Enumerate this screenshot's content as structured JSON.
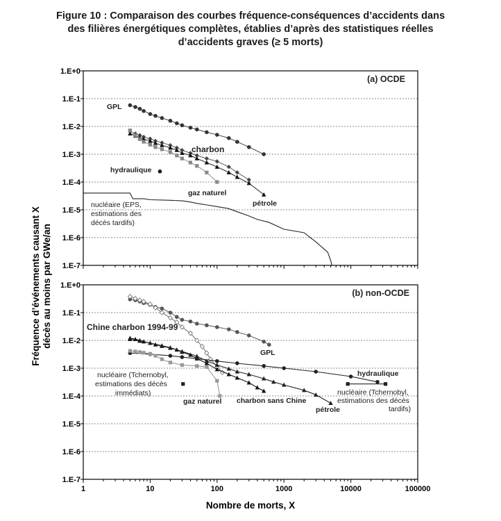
{
  "figure": {
    "title_lines": [
      "Figure 10 : Comparaison des courbes fréquence-conséquences d’accidents dans",
      "des filières énergétiques complètes, établies d’après des statistiques réelles",
      "d’accidents graves (≥ 5 morts)"
    ],
    "ylabel_lines": [
      "Fréquence d’événements causant X",
      "décès au moins par GWe/an"
    ],
    "xlabel": "Nombre de morts, X"
  },
  "chart_data": [
    {
      "type": "line",
      "title": "(a) OCDE",
      "xscale": "log",
      "yscale": "log",
      "xlim": [
        1,
        100000
      ],
      "ylim": [
        1e-07,
        1
      ],
      "x_ticks": [],
      "y_ticks": [
        "1.E-7",
        "1.E-6",
        "1.E-5",
        "1.E-4",
        "1.E-3",
        "1.E-2",
        "1.E-1",
        "1.E+0"
      ],
      "grid": "horizontal-dotted",
      "series": [
        {
          "name": "GPL",
          "marker": "circle",
          "color": "#555555",
          "markercolor": "#333333",
          "x": [
            5,
            6,
            7,
            8,
            10,
            12,
            15,
            20,
            25,
            30,
            40,
            50,
            70,
            100,
            150,
            200,
            300,
            500
          ],
          "y": [
            0.058,
            0.05,
            0.043,
            0.036,
            0.028,
            0.024,
            0.02,
            0.016,
            0.013,
            0.011,
            0.009,
            0.0078,
            0.0062,
            0.005,
            0.0038,
            0.0028,
            0.0018,
            0.001
          ]
        },
        {
          "name": "charbon",
          "marker": "diamond",
          "color": "#666666",
          "markercolor": "#444444",
          "x": [
            5,
            6,
            7,
            8,
            10,
            12,
            15,
            20,
            25,
            30,
            40,
            50,
            70,
            100,
            150,
            200,
            300
          ],
          "y": [
            0.0065,
            0.0055,
            0.0048,
            0.0042,
            0.0036,
            0.003,
            0.0026,
            0.0021,
            0.0017,
            0.0014,
            0.0011,
            0.0009,
            0.0007,
            0.00055,
            0.00035,
            0.00022,
            0.00012
          ]
        },
        {
          "name": "pétrole",
          "marker": "triangle",
          "color": "#333333",
          "markercolor": "#111111",
          "x": [
            5,
            6,
            7,
            8,
            10,
            12,
            15,
            20,
            25,
            30,
            40,
            50,
            70,
            100,
            150,
            200,
            300,
            500
          ],
          "y": [
            0.0055,
            0.0046,
            0.004,
            0.0035,
            0.003,
            0.0025,
            0.0021,
            0.0017,
            0.0014,
            0.0011,
            0.0009,
            0.0007,
            0.0005,
            0.00035,
            0.00022,
            0.00015,
            9e-05,
            3.5e-05
          ]
        },
        {
          "name": "gaz naturel",
          "marker": "square",
          "color": "#999999",
          "markercolor": "#888888",
          "x": [
            5,
            6,
            7,
            8,
            10,
            12,
            15,
            20,
            25,
            30,
            40,
            50,
            70,
            100
          ],
          "y": [
            0.0072,
            0.0048,
            0.0035,
            0.0028,
            0.0022,
            0.0018,
            0.0015,
            0.0012,
            0.0009,
            0.0007,
            0.0005,
            0.00038,
            0.00022,
            0.0001
          ]
        },
        {
          "name": "hydraulique",
          "marker": "circle",
          "color": "#111111",
          "markercolor": "#111111",
          "x": [
            14
          ],
          "y": [
            0.00024
          ]
        },
        {
          "name": "nucléaire (EPS, estimations des décès tardifs)",
          "marker": "none",
          "color": "#222222",
          "markercolor": "#222222",
          "x": [
            1,
            5,
            5.5,
            8,
            10,
            20,
            30,
            40,
            50,
            70,
            100,
            150,
            200,
            300,
            400,
            600,
            1000,
            2000,
            3000,
            4500,
            5000,
            5200
          ],
          "y": [
            4e-05,
            4e-05,
            2.5e-05,
            2.5e-05,
            2.3e-05,
            2.2e-05,
            2.1e-05,
            1.9e-05,
            1.7e-05,
            1.5e-05,
            1.3e-05,
            1.1e-05,
            8.5e-06,
            6e-06,
            4.5e-06,
            3.5e-06,
            2e-06,
            1.5e-06,
            7e-07,
            3e-07,
            1.5e-07,
            1e-07
          ]
        }
      ],
      "annotations": [
        "GPL",
        "charbon",
        "hydraulique",
        "gaz naturel",
        "pétrole",
        "nucléaire (EPS,",
        "estimations des",
        "décès tardifs)"
      ]
    },
    {
      "type": "line",
      "title": "(b) non-OCDE",
      "xscale": "log",
      "yscale": "log",
      "xlim": [
        1,
        100000
      ],
      "ylim": [
        1e-07,
        1
      ],
      "x_ticks": [
        "1",
        "10",
        "100",
        "1000",
        "10000",
        "100000"
      ],
      "y_ticks": [
        "1.E-7",
        "1.E-6",
        "1.E-5",
        "1.E-4",
        "1.E-3",
        "1.E-2",
        "1.E-1",
        "1.E+0"
      ],
      "grid": "horizontal-dotted",
      "series": [
        {
          "name": "GPL",
          "marker": "circle",
          "color": "#666666",
          "markercolor": "#555555",
          "x": [
            5,
            6,
            7,
            8,
            10,
            12,
            15,
            20,
            25,
            30,
            40,
            50,
            70,
            100,
            150,
            200,
            300,
            500,
            600
          ],
          "y": [
            0.3,
            0.28,
            0.25,
            0.22,
            0.19,
            0.16,
            0.14,
            0.1,
            0.07,
            0.055,
            0.048,
            0.04,
            0.035,
            0.03,
            0.025,
            0.02,
            0.015,
            0.009,
            0.007
          ]
        },
        {
          "name": "Chine charbon 1994-99",
          "marker": "diamond-open",
          "color": "#777777",
          "markercolor": "#777777",
          "x": [
            5,
            6,
            7,
            8,
            10,
            12,
            15,
            20,
            25,
            30,
            40,
            50,
            60,
            70,
            80,
            100,
            120
          ],
          "y": [
            0.38,
            0.32,
            0.28,
            0.25,
            0.2,
            0.15,
            0.1,
            0.065,
            0.045,
            0.03,
            0.018,
            0.01,
            0.006,
            0.0035,
            0.0021,
            0.0011,
            0.0007
          ]
        },
        {
          "name": "charbon sans Chine",
          "marker": "triangle",
          "color": "#111111",
          "markercolor": "#111111",
          "x": [
            5,
            6,
            7,
            8,
            10,
            12,
            15,
            20,
            25,
            30,
            40,
            50,
            70,
            100,
            150,
            200,
            300,
            400,
            500
          ],
          "y": [
            0.012,
            0.011,
            0.01,
            0.009,
            0.008,
            0.007,
            0.0062,
            0.0053,
            0.0046,
            0.0038,
            0.003,
            0.0022,
            0.0015,
            0.0009,
            0.0006,
            0.00045,
            0.0003,
            0.0002,
            0.00015
          ]
        },
        {
          "name": "pétrole",
          "marker": "triangle",
          "color": "#222222",
          "markercolor": "#222222",
          "x": [
            5,
            7,
            10,
            15,
            20,
            30,
            50,
            70,
            100,
            150,
            200,
            300,
            500,
            700,
            1000,
            2000,
            3000,
            5000
          ],
          "y": [
            0.011,
            0.0095,
            0.008,
            0.0065,
            0.0055,
            0.004,
            0.0027,
            0.0018,
            0.0013,
            0.00095,
            0.00075,
            0.0006,
            0.00042,
            0.00032,
            0.00025,
            0.00016,
            0.00011,
            5.5e-05
          ]
        },
        {
          "name": "hydraulique",
          "marker": "circle",
          "color": "#222222",
          "markercolor": "#222222",
          "x": [
            5,
            10,
            20,
            30,
            50,
            100,
            200,
            500,
            1000,
            3000,
            10000,
            25000
          ],
          "y": [
            0.0035,
            0.0032,
            0.0028,
            0.0025,
            0.0022,
            0.0018,
            0.0015,
            0.0012,
            0.001,
            0.00075,
            0.0005,
            0.00032
          ]
        },
        {
          "name": "gaz naturel",
          "marker": "square",
          "color": "#999999",
          "markercolor": "#999999",
          "x": [
            5,
            6,
            7,
            8,
            10,
            12,
            15,
            20,
            30,
            50,
            70,
            100,
            110
          ],
          "y": [
            0.0042,
            0.004,
            0.0038,
            0.0036,
            0.0033,
            0.0028,
            0.0021,
            0.0016,
            0.0013,
            0.0012,
            0.0011,
            0.00035,
            0.0001
          ]
        },
        {
          "name": "nucléaire (Tchernobyl, estimations des décès immédiats)",
          "marker": "square",
          "color": "#222222",
          "markercolor": "#222222",
          "x": [
            31
          ],
          "y": [
            0.00027
          ]
        },
        {
          "name": "nucléaire (Tchernobyl, estimations des décès tardifs)",
          "marker": "square",
          "color": "#222222",
          "markercolor": "#222222",
          "x": [
            9000,
            33000
          ],
          "y": [
            0.00027,
            0.00027
          ]
        }
      ],
      "annotations": [
        "Chine charbon 1994-99",
        "GPL",
        "hydraulique",
        "nucléaire (Tchernobyl,",
        "estimations des décès",
        "immédiats)",
        "gaz naturel",
        "charbon sans Chine",
        "pétrole",
        "nucléaire (Tchernobyl,",
        "estimations des décès",
        "tardifs)"
      ]
    }
  ]
}
